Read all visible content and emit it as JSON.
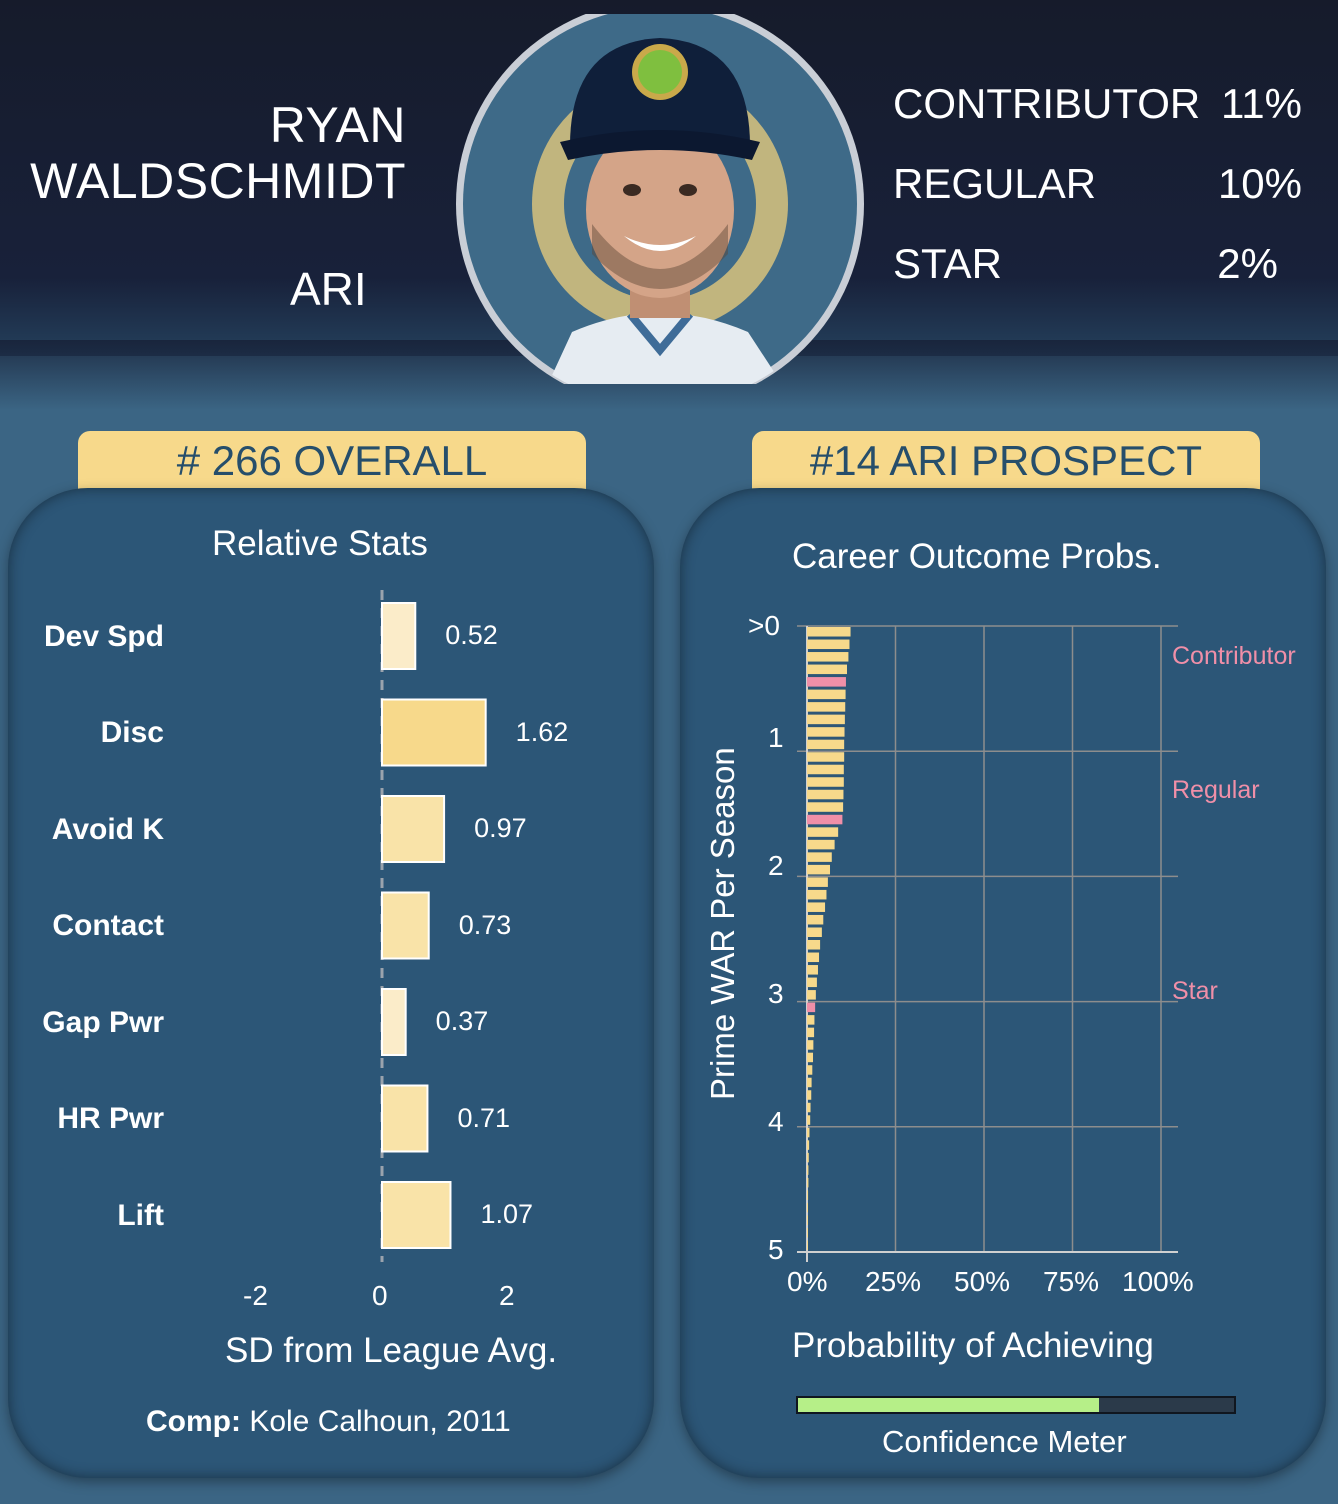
{
  "player": {
    "first_name": "RYAN",
    "last_name": "WALDSCHMIDT",
    "team": "ARI"
  },
  "outcome_probs": [
    {
      "label": "CONTRIBUTOR",
      "value": "11%"
    },
    {
      "label": "REGULAR",
      "value": "10%"
    },
    {
      "label": "STAR",
      "value": "2%"
    }
  ],
  "rank": {
    "overall": "# 266 OVERALL",
    "team": "#14 ARI PROSPECT"
  },
  "comp": {
    "label": "Comp:",
    "value": " Kole Calhoun, 2011"
  },
  "confidence": {
    "label": "Confidence Meter",
    "level": 0.69,
    "color": "#b6ef88"
  },
  "colors": {
    "header_bg": "#161b2b",
    "page_bg": "#3b6584",
    "panel_bg": "#2c5677",
    "tab_bg": "#f7d98b",
    "bar_yellow": "#f7d98b",
    "bar_pink": "#f08fa8",
    "grid": "#8d8d8d"
  },
  "chart_data": [
    {
      "type": "bar",
      "orientation": "horizontal",
      "title": "Relative Stats",
      "xlabel": "SD from League Avg.",
      "ylabel": "",
      "categories": [
        "Dev Spd",
        "Disc",
        "Avoid K",
        "Contact",
        "Gap Pwr",
        "HR Pwr",
        "Lift"
      ],
      "values": [
        0.52,
        1.62,
        0.97,
        0.73,
        0.37,
        0.71,
        1.07
      ],
      "value_labels": [
        "0.52",
        "1.62",
        "0.97",
        "0.73",
        "0.37",
        "0.71",
        "1.07"
      ],
      "xlim": [
        -2,
        2
      ],
      "xticks": [
        "-2",
        "0",
        "2"
      ],
      "zero_line": "dashed",
      "grid": false
    },
    {
      "type": "bar",
      "orientation": "horizontal",
      "title": "Career Outcome Probs.",
      "xlabel": "Probability of Achieving",
      "ylabel": "Prime WAR Per Season",
      "x_unit": "percent",
      "xlim": [
        0,
        100
      ],
      "xticks": [
        "0%",
        "25%",
        "50%",
        "75%",
        "100%"
      ],
      "ylim": [
        0,
        5
      ],
      "yticks": [
        ">0",
        "1",
        "2",
        "3",
        "4",
        "5"
      ],
      "grid": true,
      "war": [
        0.0,
        0.1,
        0.2,
        0.3,
        0.4,
        0.5,
        0.6,
        0.7,
        0.8,
        0.9,
        1.0,
        1.1,
        1.2,
        1.3,
        1.4,
        1.5,
        1.6,
        1.7,
        1.8,
        1.9,
        2.0,
        2.1,
        2.2,
        2.3,
        2.4,
        2.5,
        2.6,
        2.7,
        2.8,
        2.9,
        3.0,
        3.1,
        3.2,
        3.3,
        3.4,
        3.5,
        3.6,
        3.7,
        3.8,
        3.9,
        4.0,
        4.1,
        4.2,
        4.3,
        4.4,
        4.5,
        4.6,
        4.7,
        4.8,
        4.9
      ],
      "probability": [
        12.3,
        12.0,
        11.7,
        11.3,
        11.0,
        10.9,
        10.8,
        10.7,
        10.6,
        10.5,
        10.5,
        10.4,
        10.4,
        10.3,
        10.2,
        10.0,
        8.8,
        7.8,
        7.0,
        6.5,
        5.9,
        5.5,
        5.1,
        4.6,
        4.2,
        3.7,
        3.4,
        3.1,
        2.8,
        2.5,
        2.3,
        2.1,
        2.0,
        1.8,
        1.7,
        1.5,
        1.3,
        1.2,
        1.0,
        0.9,
        0.7,
        0.6,
        0.5,
        0.4,
        0.4,
        0.3,
        0.2,
        0.2,
        0.1,
        0.1
      ],
      "highlight_war": [
        0.4,
        1.5,
        3.0
      ],
      "annotations": [
        {
          "label": "Contributor",
          "war": 0.2
        },
        {
          "label": "Regular",
          "war": 1.2
        },
        {
          "label": "Star",
          "war": 2.8
        }
      ]
    }
  ]
}
